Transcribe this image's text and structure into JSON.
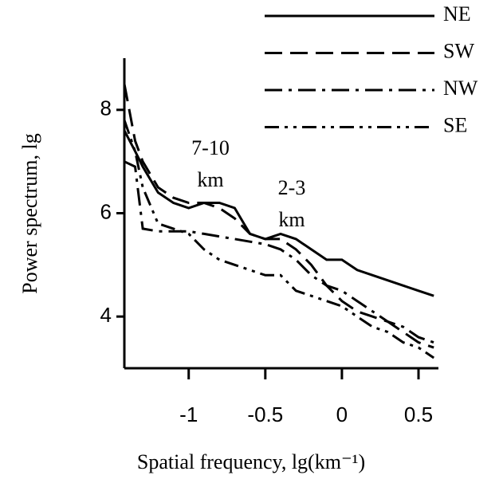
{
  "chart_data": {
    "type": "line",
    "x_label": "Spatial frequency, lg(km⁻¹)",
    "y_label": "Power spectrum, lg",
    "x": [
      -1.42,
      -1.35,
      -1.3,
      -1.2,
      -1.1,
      -1.0,
      -0.9,
      -0.8,
      -0.7,
      -0.6,
      -0.5,
      -0.4,
      -0.3,
      -0.2,
      -0.1,
      0,
      0.1,
      0.2,
      0.3,
      0.4,
      0.5,
      0.6
    ],
    "series": [
      {
        "name": "NE",
        "color": "#000000",
        "dash": "solid",
        "values": [
          7.6,
          7.2,
          6.9,
          6.4,
          6.2,
          6.1,
          6.2,
          6.2,
          6.1,
          5.6,
          5.5,
          5.6,
          5.5,
          5.3,
          5.1,
          5.1,
          4.9,
          4.8,
          4.7,
          4.6,
          4.5,
          4.4
        ]
      },
      {
        "name": "SW",
        "color": "#000000",
        "dash": "dashed",
        "values": [
          8.5,
          7.4,
          7.0,
          6.5,
          6.3,
          6.2,
          6.2,
          6.1,
          5.9,
          5.6,
          5.5,
          5.5,
          5.3,
          5.0,
          4.6,
          4.3,
          4.1,
          4.0,
          3.9,
          3.7,
          3.5,
          3.4
        ]
      },
      {
        "name": "NW",
        "color": "#000000",
        "dash": "dashdot",
        "values": [
          7.0,
          6.9,
          5.7,
          5.65,
          5.65,
          5.65,
          5.6,
          5.55,
          5.5,
          5.45,
          5.4,
          5.3,
          5.1,
          4.8,
          4.6,
          4.5,
          4.3,
          4.1,
          3.9,
          3.8,
          3.6,
          3.5
        ]
      },
      {
        "name": "SE",
        "color": "#000000",
        "dash": "dashdotdot",
        "values": [
          7.8,
          7.2,
          6.5,
          5.8,
          5.7,
          5.6,
          5.3,
          5.1,
          5.0,
          4.9,
          4.8,
          4.8,
          4.5,
          4.4,
          4.3,
          4.2,
          4.0,
          3.8,
          3.7,
          3.5,
          3.4,
          3.2
        ]
      }
    ],
    "annotations": [
      [
        "7-10",
        "km"
      ],
      [
        "2-3",
        "km"
      ]
    ],
    "xlim": [
      -1.42,
      0.63
    ],
    "xticks": [
      -1,
      -0.5,
      0,
      0.5
    ],
    "ylim": [
      3,
      9
    ],
    "yticks": [
      4,
      6,
      8
    ],
    "legend": "top-right",
    "grid": false
  }
}
